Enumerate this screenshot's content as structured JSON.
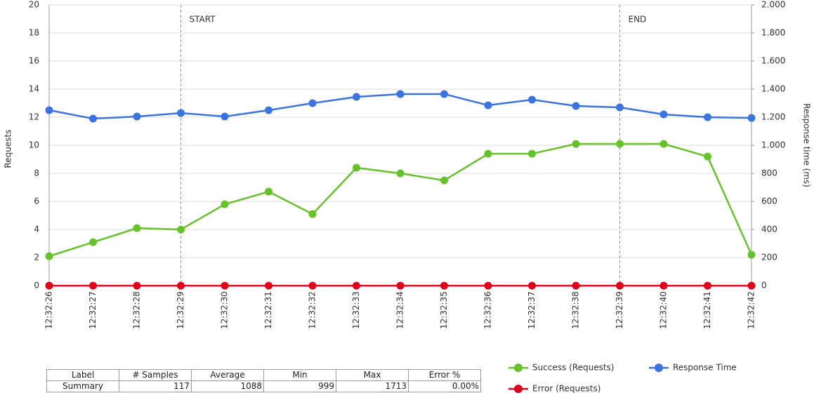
{
  "chart_data": {
    "type": "line",
    "y_label": "Requests",
    "y2_label": "Response time (ms)",
    "categories": [
      "12:32:26",
      "12:32:27",
      "12:32:28",
      "12:32:29",
      "12:32:30",
      "12:32:31",
      "12:32:32",
      "12:32:33",
      "12:32:34",
      "12:32:35",
      "12:32:36",
      "12:32:37",
      "12:32:38",
      "12:32:39",
      "12:32:40",
      "12:32:41",
      "12:32:42"
    ],
    "series": [
      {
        "name": "Success (Requests)",
        "color": "#66c22a",
        "values": [
          2.1,
          3.1,
          4.1,
          4,
          5.8,
          6.7,
          5.1,
          8.4,
          8,
          7.5,
          9.4,
          9.4,
          10.1,
          10.1,
          10.1,
          9.2,
          2.2
        ]
      },
      {
        "name": "Response Time",
        "color": "#3b73e0",
        "axis": "y2",
        "values": [
          1250,
          1190,
          1205,
          1230,
          1205,
          1250,
          1300,
          1345,
          1365,
          1365,
          1285,
          1325,
          1280,
          1270,
          1220,
          1200,
          1195
        ]
      },
      {
        "name": "Error (Requests)",
        "color": "#e0001a",
        "values": [
          0,
          0,
          0,
          0,
          0,
          0,
          0,
          0,
          0,
          0,
          0,
          0,
          0,
          0,
          0,
          0,
          0
        ]
      }
    ],
    "ylim": [
      0,
      20
    ],
    "yticks": [
      0,
      2,
      4,
      6,
      8,
      10,
      12,
      14,
      16,
      18,
      20
    ],
    "y2lim": [
      0,
      2000
    ],
    "y2ticks": [
      0,
      200,
      400,
      600,
      800,
      {
        "value": 1000,
        "label": "1.000"
      },
      {
        "value": 1200,
        "label": "1.200"
      },
      {
        "value": 1400,
        "label": "1.400"
      },
      {
        "value": 1600,
        "label": "1.600"
      },
      {
        "value": 1800,
        "label": "1.800"
      },
      {
        "value": 2000,
        "label": "2.000"
      }
    ],
    "grid": true,
    "legend": "bottom-right",
    "annotations": [
      {
        "label": "START",
        "x": "12:32:29"
      },
      {
        "label": "END",
        "x": "12:32:39"
      }
    ]
  },
  "table": {
    "columns": [
      "Label",
      "# Samples",
      "Average",
      "Min",
      "Max",
      "Error %"
    ],
    "rows": [
      [
        "Summary",
        117,
        1088,
        999,
        1713,
        "0.00%"
      ]
    ]
  }
}
